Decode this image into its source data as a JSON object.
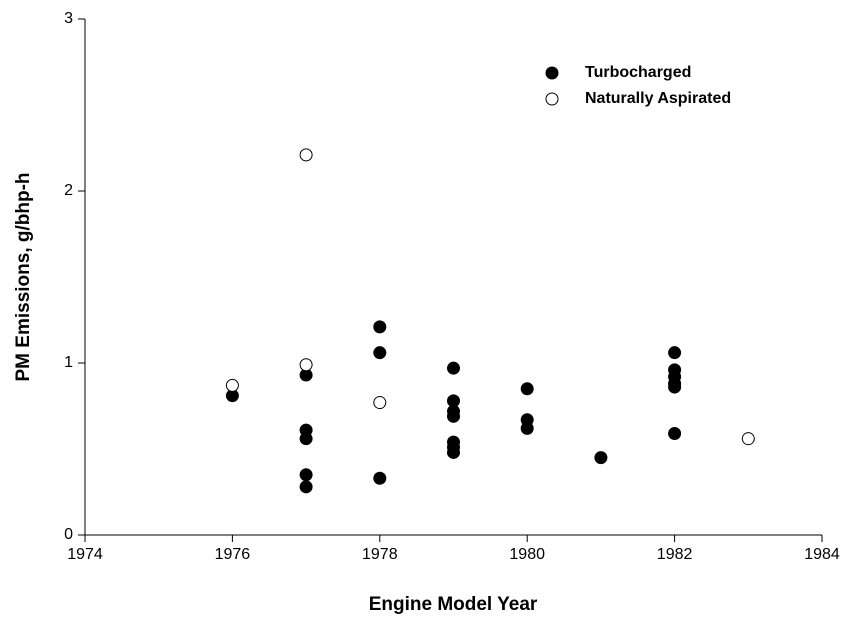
{
  "chart_data": {
    "type": "scatter",
    "xlabel": "Engine Model Year",
    "ylabel": "PM Emissions, g/bhp-h",
    "xlim": [
      1974,
      1984
    ],
    "xticks": [
      1974,
      1976,
      1978,
      1980,
      1982,
      1984
    ],
    "ylim": [
      0,
      3
    ],
    "yticks": [
      0,
      1,
      2,
      3
    ],
    "legend": "upper right",
    "series": [
      {
        "name": "Turbocharged",
        "color": "#000000",
        "x": [
          1976,
          1977,
          1977,
          1977,
          1977,
          1977,
          1978,
          1978,
          1978,
          1979,
          1979,
          1979,
          1979,
          1979,
          1979,
          1979,
          1980,
          1980,
          1980,
          1981,
          1982,
          1982,
          1982,
          1982,
          1982,
          1982
        ],
        "values": [
          0.81,
          0.93,
          0.61,
          0.56,
          0.35,
          0.28,
          1.21,
          1.06,
          0.33,
          0.97,
          0.78,
          0.72,
          0.69,
          0.54,
          0.51,
          0.48,
          0.85,
          0.67,
          0.62,
          0.45,
          1.06,
          0.96,
          0.92,
          0.88,
          0.86,
          0.59
        ]
      },
      {
        "name": "Naturally Aspirated",
        "color": "#ffffff",
        "x": [
          1976,
          1977,
          1977,
          1978,
          1983
        ],
        "values": [
          0.87,
          2.21,
          0.99,
          0.77,
          0.56
        ]
      }
    ]
  }
}
